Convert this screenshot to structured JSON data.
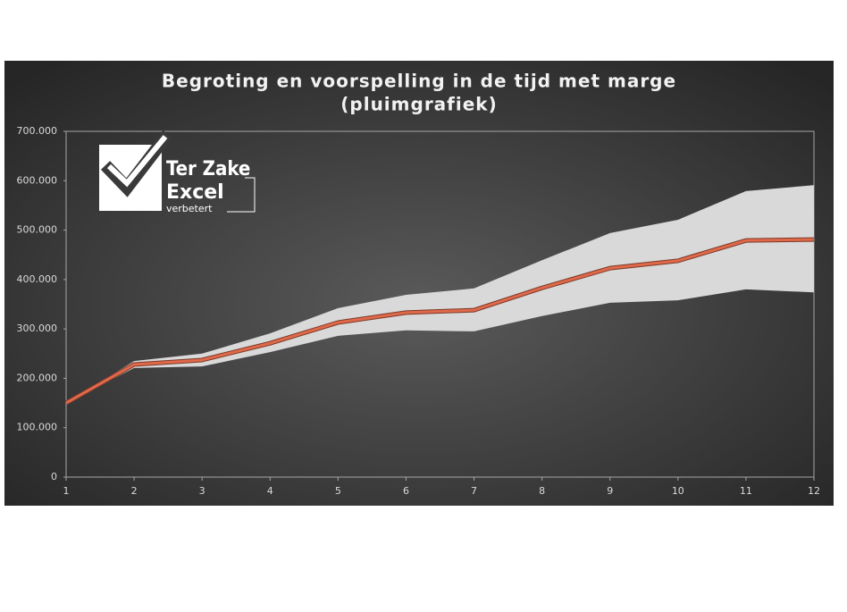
{
  "chart_data": {
    "type": "line",
    "title": [
      "Begroting en voorspelling in de tijd met marge",
      "(pluimgrafiek)"
    ],
    "x": [
      1,
      2,
      3,
      4,
      5,
      6,
      7,
      8,
      9,
      10,
      11,
      12
    ],
    "xlim": [
      1,
      12
    ],
    "xticks": [
      1,
      2,
      3,
      4,
      5,
      6,
      7,
      8,
      9,
      10,
      11,
      12
    ],
    "ylim": [
      0,
      700000
    ],
    "yticks": [
      0,
      {
        "value": 100000,
        "label": "100.000"
      },
      {
        "value": 200000,
        "label": "200.000"
      },
      {
        "value": 300000,
        "label": "300.000"
      },
      {
        "value": 400000,
        "label": "400.000"
      },
      {
        "value": 500000,
        "label": "500.000"
      },
      {
        "value": 600000,
        "label": "600.000"
      },
      {
        "value": 700000,
        "label": "700.000"
      }
    ],
    "band": {
      "color": "#d9d9d9",
      "upper": [
        150000,
        235000,
        250000,
        291000,
        342000,
        369000,
        382000,
        439000,
        494000,
        521000,
        579000,
        591000
      ],
      "lower": [
        150000,
        221000,
        224000,
        253000,
        286000,
        297000,
        295000,
        326000,
        353000,
        358000,
        380000,
        374000
      ]
    },
    "series": [
      {
        "color": "#e0694a",
        "values": [
          150000,
          228000,
          237000,
          271000,
          313000,
          333000,
          338000,
          383000,
          423000,
          438000,
          479000,
          481000
        ]
      }
    ]
  },
  "logo": {
    "line1": "Ter Zake",
    "line2": "Excel",
    "line3": "verbetert"
  }
}
